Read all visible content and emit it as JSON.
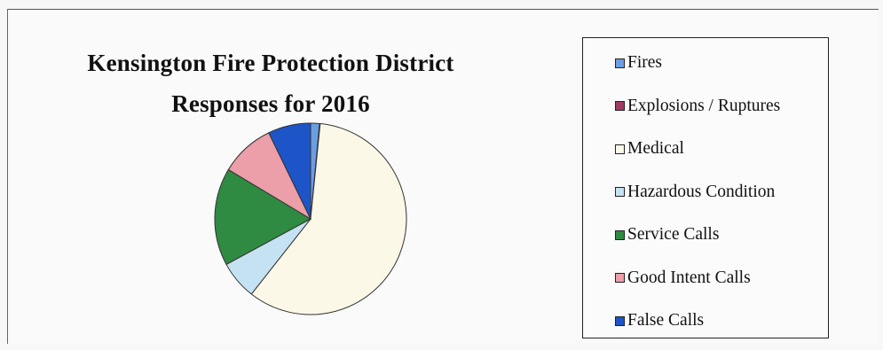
{
  "chart_data": {
    "type": "pie",
    "title": "Kensington Fire Protection District",
    "subtitle": "Responses for 2016",
    "categories": [
      "Fires",
      "Explosions / Ruptures",
      "Medical",
      "Hazardous Condition",
      "Service Calls",
      "Good Intent Calls",
      "False Calls"
    ],
    "values": [
      1.5,
      0.1,
      59,
      6.5,
      16.5,
      9.2,
      7.2
    ],
    "colors": [
      "#6b9ee0",
      "#a03a64",
      "#fbf8e7",
      "#c5e2f3",
      "#2f8a42",
      "#ec9ea9",
      "#1d55c8"
    ],
    "legend_position": "right"
  }
}
